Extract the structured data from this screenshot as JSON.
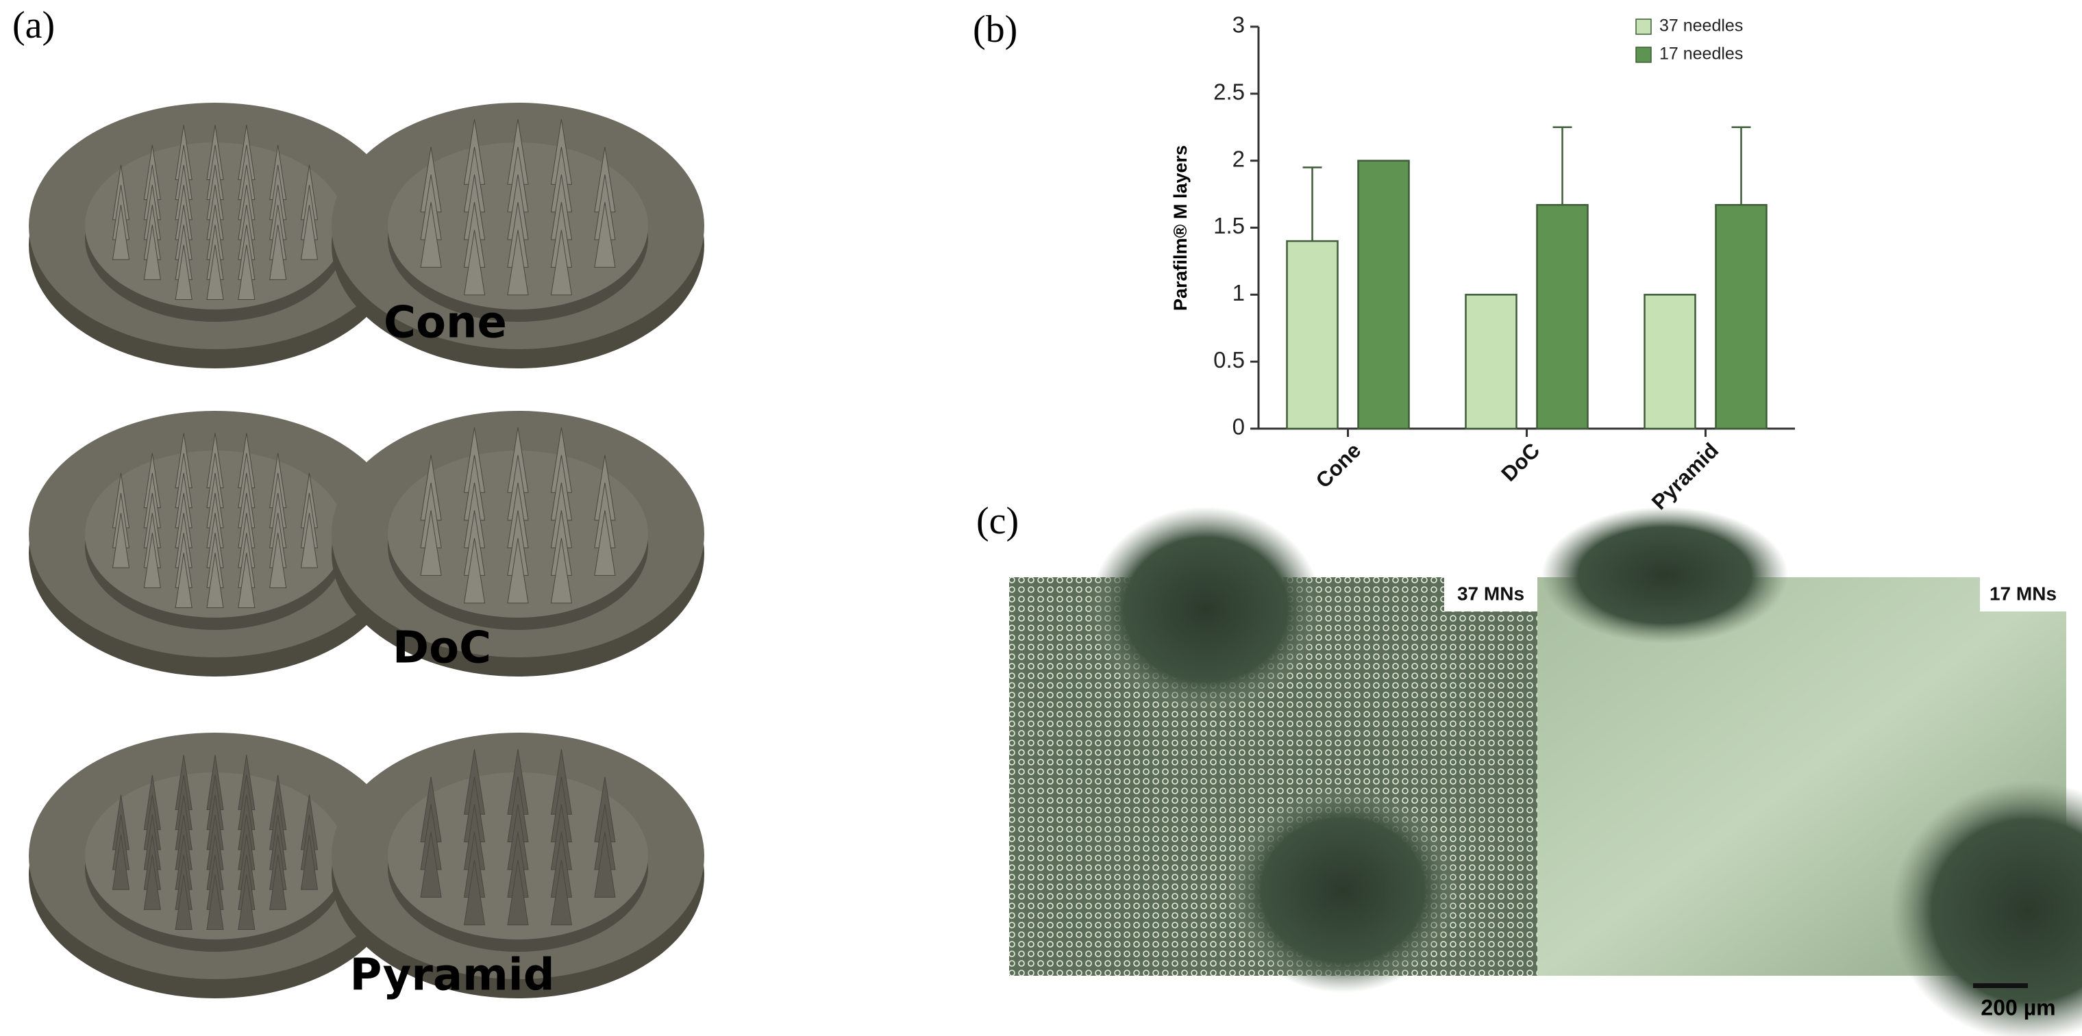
{
  "panel_a": {
    "label": "(a)",
    "designs": [
      "Cone",
      "DoC",
      "Pyramid"
    ]
  },
  "chart_data": {
    "type": "bar",
    "panel_label": "(b)",
    "y_label": "Parafilm® M layers",
    "categories": [
      "Cone",
      "DoC",
      "Pyramid"
    ],
    "series": [
      {
        "name": "37 needles",
        "color": "#c6e2b5",
        "values": [
          1.4,
          1.0,
          1.0
        ],
        "errors": [
          0.55,
          null,
          null
        ]
      },
      {
        "name": "17 needles",
        "color": "#5f9352",
        "values": [
          2.0,
          1.67,
          1.67
        ],
        "errors": [
          null,
          0.58,
          0.58
        ]
      }
    ],
    "ylim": [
      0,
      3
    ],
    "yticks": [
      0,
      0.5,
      1,
      1.5,
      2,
      2.5,
      3
    ],
    "grid": false,
    "legend": "top-right"
  },
  "panel_c": {
    "label": "(c)",
    "images": [
      "37 MNs",
      "17 MNs"
    ],
    "scale_bar": "200 µm"
  }
}
